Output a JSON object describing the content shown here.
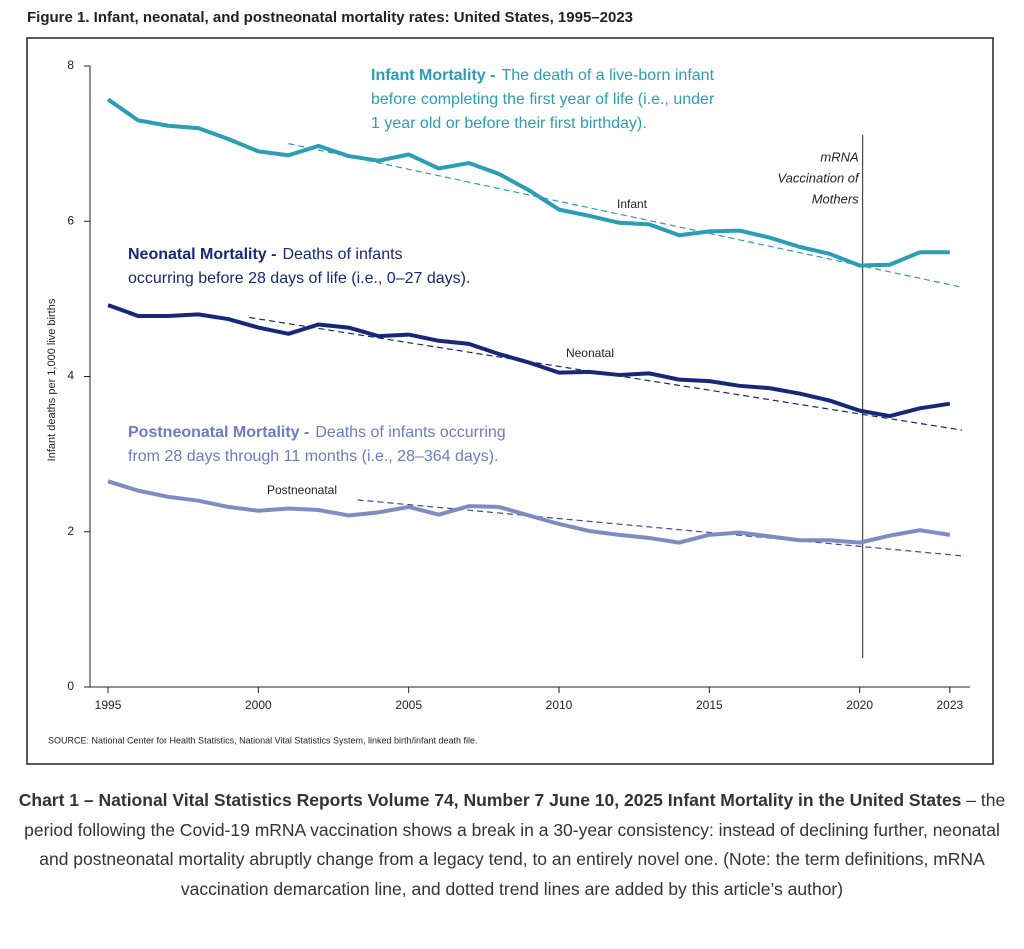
{
  "chart_data": {
    "type": "line",
    "title": "Figure 1. Infant, neonatal, and postneonatal mortality rates: United States, 1995–2023",
    "y_label": "Infant deaths per 1,000 live births",
    "source": "SOURCE: National Center for Health Statistics, National Vital Statistics System, linked birth/infant death file.",
    "x": [
      1995,
      1996,
      1997,
      1998,
      1999,
      2000,
      2001,
      2002,
      2003,
      2004,
      2005,
      2006,
      2007,
      2008,
      2009,
      2010,
      2011,
      2012,
      2013,
      2014,
      2015,
      2016,
      2017,
      2018,
      2019,
      2020,
      2021,
      2022,
      2023
    ],
    "series": [
      {
        "name": "Infant",
        "color": "#2b9db4",
        "values": [
          7.57,
          7.3,
          7.23,
          7.2,
          7.06,
          6.9,
          6.85,
          6.97,
          6.84,
          6.78,
          6.86,
          6.68,
          6.75,
          6.61,
          6.4,
          6.15,
          6.07,
          5.98,
          5.96,
          5.82,
          5.87,
          5.88,
          5.79,
          5.67,
          5.58,
          5.43,
          5.44,
          5.6,
          5.6
        ]
      },
      {
        "name": "Neonatal",
        "color": "#172878",
        "values": [
          4.92,
          4.78,
          4.78,
          4.8,
          4.74,
          4.63,
          4.55,
          4.67,
          4.63,
          4.52,
          4.54,
          4.46,
          4.42,
          4.29,
          4.18,
          4.05,
          4.06,
          4.02,
          4.04,
          3.96,
          3.94,
          3.88,
          3.85,
          3.78,
          3.69,
          3.56,
          3.49,
          3.59,
          3.65
        ]
      },
      {
        "name": "Postneonatal",
        "color": "#7d8dc4",
        "values": [
          2.65,
          2.53,
          2.45,
          2.4,
          2.32,
          2.27,
          2.3,
          2.28,
          2.21,
          2.25,
          2.32,
          2.22,
          2.33,
          2.32,
          2.21,
          2.1,
          2.01,
          1.96,
          1.92,
          1.86,
          1.96,
          1.99,
          1.94,
          1.89,
          1.89,
          1.86,
          1.95,
          2.02,
          1.96
        ]
      }
    ],
    "trend_lines": [
      {
        "color": "#2b9db4",
        "x": [
          2001,
          2023.4
        ],
        "values": [
          7.0,
          5.15
        ]
      },
      {
        "color": "#172878",
        "x": [
          1999.7,
          2023.4
        ],
        "values": [
          4.76,
          3.31
        ]
      },
      {
        "color": "#3a4a9a",
        "x": [
          2003.3,
          2023.4
        ],
        "values": [
          2.41,
          1.69
        ]
      }
    ],
    "vaccination_line": {
      "x": 2020.1,
      "label": [
        "mRNA",
        "Vaccination of",
        "Mothers"
      ]
    },
    "definitions": [
      {
        "term": "Infant Mortality -",
        "color": "#2b9db4",
        "lines": [
          "The death of a live-born infant",
          "before completing the first year of life (i.e., under",
          "1 year old or before their first birthday)."
        ]
      },
      {
        "term": "Neonatal Mortality -",
        "color": "#172878",
        "lines": [
          "Deaths of infants",
          "occurring before 28 days of life (i.e., 0–27 days)."
        ]
      },
      {
        "term": "Postneonatal Mortality -",
        "color": "#6b7cbf",
        "lines": [
          "Deaths of infants occurring",
          "from 28 days through 11 months (i.e., 28–364 days)."
        ]
      }
    ],
    "xlim": [
      1994.4,
      2023.67
    ],
    "xticks": [
      1995,
      2000,
      2005,
      2010,
      2015,
      2020,
      2023
    ],
    "ylim": [
      0,
      8
    ],
    "yticks": [
      0,
      2,
      4,
      6,
      8
    ],
    "caption": {
      "bold": "Chart 1 – National Vital Statistics Reports Volume 74, Number 7 June 10, 2025 Infant Mortality in the United States",
      "text": "– the period following the Covid-19 mRNA vaccination shows a break in a 30-year consistency: instead of declining further, neonatal and postneonatal mortality abruptly change from a legacy tend, to an entirely novel one. (Note: the term definitions, mRNA vaccination demarcation line, and dotted trend lines are added by this article’s author)"
    }
  }
}
